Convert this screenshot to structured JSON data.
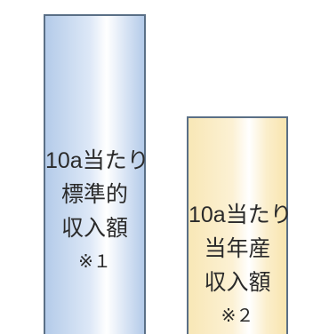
{
  "bars": [
    {
      "lines": [
        "10a当たり",
        "標準的",
        "収入額"
      ],
      "note": "※１"
    },
    {
      "lines": [
        "10a当たり",
        "当年産",
        "収入額"
      ],
      "note": "※２"
    }
  ],
  "colors": {
    "standard_bar": "#c6d8ef",
    "current_bar": "#f9e8b9",
    "bar_border": "#5a6f86",
    "text": "#2a2a2a"
  }
}
